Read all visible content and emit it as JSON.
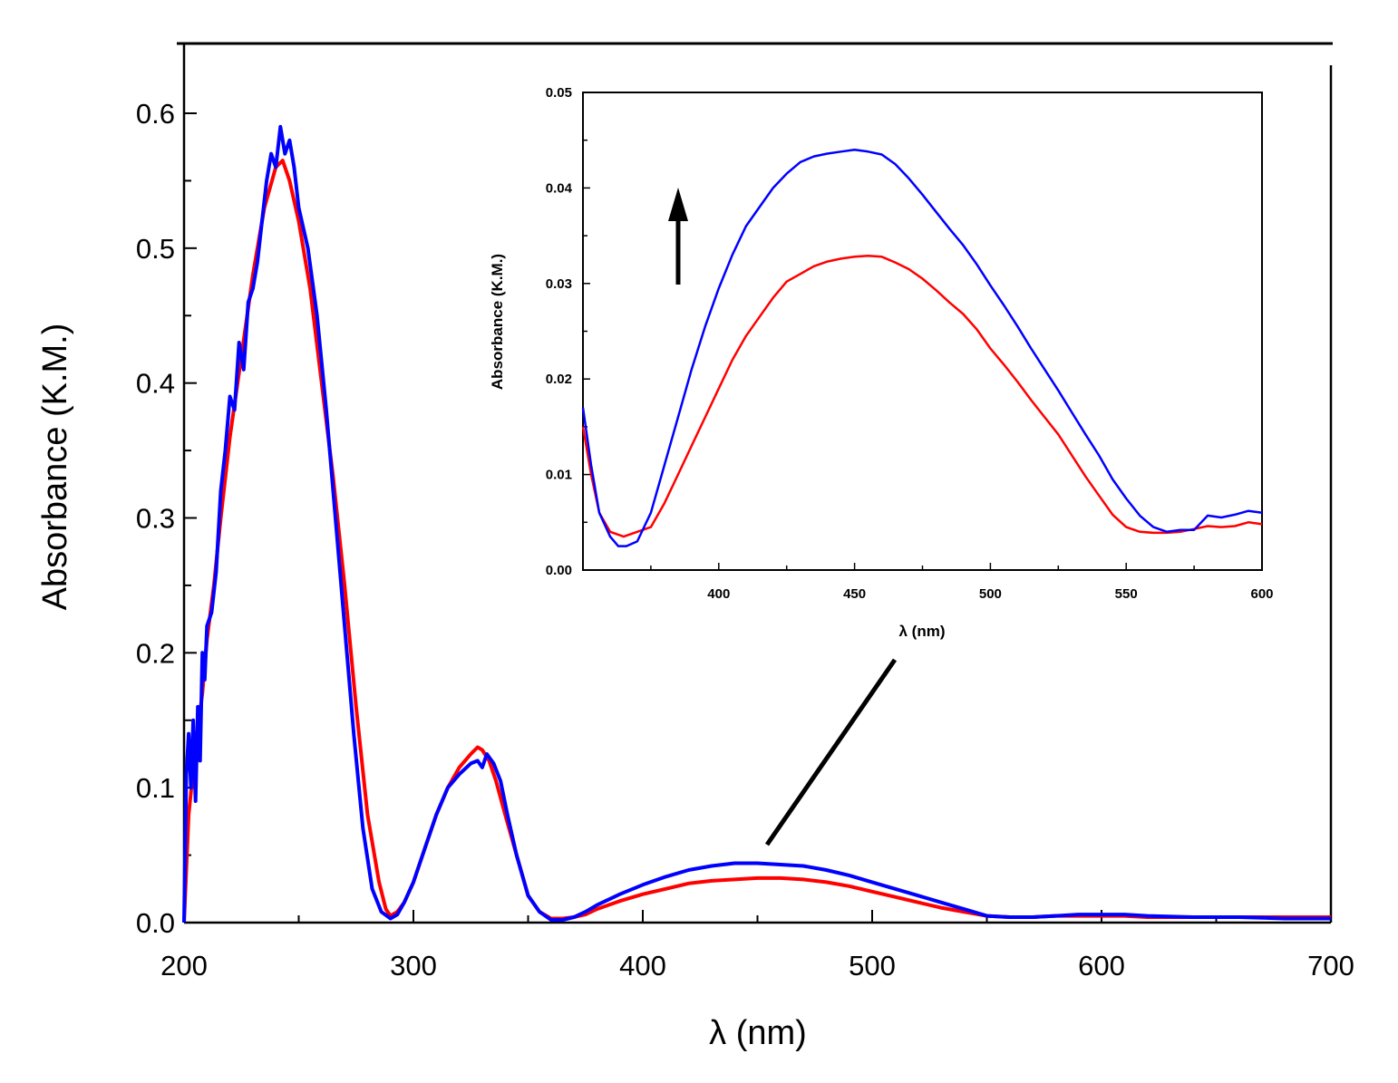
{
  "colors": {
    "series_red": "#ff0000",
    "series_blue": "#0000ff",
    "axis": "#000000"
  },
  "chart_data": [
    {
      "type": "line",
      "role": "main",
      "xlabel": "λ (nm)",
      "ylabel": "Absorbance (K.M.)",
      "xlim": [
        200,
        700
      ],
      "ylim": [
        0.0,
        0.65
      ],
      "xticks": [
        200,
        300,
        400,
        500,
        600,
        700
      ],
      "xtick_labels": [
        "200",
        "300",
        "400",
        "500",
        "600",
        "700"
      ],
      "yticks": [
        0.0,
        0.1,
        0.2,
        0.3,
        0.4,
        0.5,
        0.6
      ],
      "ytick_labels": [
        "0.0",
        "0.1",
        "0.2",
        "0.3",
        "0.4",
        "0.5",
        "0.6"
      ],
      "series": [
        {
          "name": "red",
          "color": "#ff0000",
          "x": [
            200,
            202,
            205,
            208,
            210,
            213,
            216,
            220,
            225,
            230,
            235,
            240,
            243,
            246,
            250,
            255,
            260,
            265,
            270,
            275,
            280,
            285,
            288,
            290,
            293,
            296,
            300,
            305,
            310,
            315,
            320,
            325,
            328,
            330,
            333,
            336,
            340,
            345,
            350,
            355,
            360,
            365,
            370,
            375,
            380,
            390,
            400,
            410,
            420,
            430,
            440,
            450,
            460,
            470,
            480,
            490,
            500,
            510,
            520,
            530,
            540,
            550,
            560,
            570,
            580,
            590,
            600,
            610,
            620,
            640,
            660,
            680,
            700
          ],
          "y": [
            0.0,
            0.08,
            0.13,
            0.17,
            0.21,
            0.25,
            0.3,
            0.36,
            0.42,
            0.48,
            0.53,
            0.56,
            0.565,
            0.55,
            0.52,
            0.47,
            0.4,
            0.33,
            0.25,
            0.16,
            0.08,
            0.03,
            0.01,
            0.005,
            0.008,
            0.015,
            0.03,
            0.055,
            0.08,
            0.1,
            0.115,
            0.125,
            0.13,
            0.128,
            0.12,
            0.105,
            0.08,
            0.05,
            0.02,
            0.008,
            0.003,
            0.003,
            0.004,
            0.006,
            0.01,
            0.016,
            0.021,
            0.025,
            0.029,
            0.031,
            0.032,
            0.033,
            0.033,
            0.032,
            0.03,
            0.027,
            0.023,
            0.019,
            0.015,
            0.011,
            0.008,
            0.005,
            0.004,
            0.004,
            0.005,
            0.005,
            0.005,
            0.005,
            0.004,
            0.004,
            0.004,
            0.004,
            0.004
          ]
        },
        {
          "name": "blue",
          "color": "#0000ff",
          "x": [
            200,
            201,
            202,
            203,
            204,
            205,
            206,
            207,
            208,
            209,
            210,
            212,
            214,
            216,
            218,
            220,
            222,
            224,
            226,
            228,
            230,
            232,
            234,
            236,
            238,
            240,
            242,
            244,
            246,
            248,
            250,
            254,
            258,
            262,
            266,
            270,
            274,
            278,
            282,
            286,
            290,
            293,
            296,
            300,
            305,
            310,
            315,
            320,
            325,
            328,
            330,
            332,
            335,
            338,
            341,
            345,
            350,
            355,
            360,
            365,
            370,
            375,
            380,
            390,
            400,
            410,
            420,
            430,
            440,
            450,
            460,
            470,
            480,
            490,
            500,
            510,
            520,
            530,
            540,
            550,
            560,
            570,
            580,
            590,
            600,
            610,
            620,
            640,
            660,
            680,
            700
          ],
          "y": [
            0.0,
            0.11,
            0.14,
            0.1,
            0.15,
            0.09,
            0.16,
            0.12,
            0.2,
            0.18,
            0.22,
            0.23,
            0.26,
            0.32,
            0.35,
            0.39,
            0.38,
            0.43,
            0.41,
            0.46,
            0.47,
            0.49,
            0.52,
            0.55,
            0.57,
            0.56,
            0.59,
            0.57,
            0.58,
            0.56,
            0.53,
            0.5,
            0.45,
            0.38,
            0.3,
            0.22,
            0.14,
            0.07,
            0.025,
            0.008,
            0.003,
            0.006,
            0.015,
            0.03,
            0.055,
            0.08,
            0.1,
            0.11,
            0.118,
            0.12,
            0.115,
            0.125,
            0.118,
            0.105,
            0.08,
            0.05,
            0.02,
            0.008,
            0.002,
            0.002,
            0.004,
            0.008,
            0.013,
            0.021,
            0.028,
            0.034,
            0.039,
            0.042,
            0.044,
            0.044,
            0.043,
            0.042,
            0.039,
            0.035,
            0.03,
            0.025,
            0.02,
            0.015,
            0.01,
            0.005,
            0.004,
            0.004,
            0.005,
            0.006,
            0.006,
            0.006,
            0.005,
            0.004,
            0.004,
            0.003,
            0.003
          ]
        }
      ],
      "annotations": [
        "pointer line from 450 nm band to inset"
      ]
    },
    {
      "type": "line",
      "role": "inset",
      "xlabel": "λ (nm)",
      "ylabel": "Absorbance (K.M.)",
      "xlim": [
        350,
        600
      ],
      "ylim": [
        0.0,
        0.05
      ],
      "xticks": [
        400,
        450,
        500,
        550,
        600
      ],
      "xtick_labels": [
        "400",
        "450",
        "500",
        "550",
        "600"
      ],
      "yticks": [
        0.0,
        0.01,
        0.02,
        0.03,
        0.04,
        0.05
      ],
      "ytick_labels": [
        "0.00",
        "0.01",
        "0.02",
        "0.03",
        "0.04",
        "0.05"
      ],
      "series": [
        {
          "name": "red",
          "color": "#ff0000",
          "x": [
            350,
            353,
            356,
            360,
            365,
            370,
            375,
            380,
            385,
            390,
            395,
            400,
            405,
            410,
            415,
            420,
            425,
            430,
            435,
            440,
            445,
            450,
            455,
            460,
            465,
            470,
            475,
            480,
            485,
            490,
            495,
            500,
            505,
            510,
            515,
            520,
            525,
            530,
            535,
            540,
            545,
            550,
            555,
            560,
            565,
            570,
            575,
            580,
            585,
            590,
            595,
            600
          ],
          "y": [
            0.015,
            0.01,
            0.006,
            0.004,
            0.0035,
            0.004,
            0.0045,
            0.007,
            0.01,
            0.013,
            0.016,
            0.019,
            0.022,
            0.0245,
            0.0265,
            0.0285,
            0.0302,
            0.031,
            0.0318,
            0.0323,
            0.0326,
            0.0328,
            0.0329,
            0.0328,
            0.0322,
            0.0315,
            0.0305,
            0.0293,
            0.028,
            0.0268,
            0.0252,
            0.0232,
            0.0215,
            0.0197,
            0.0178,
            0.016,
            0.0142,
            0.012,
            0.0098,
            0.0078,
            0.0058,
            0.0045,
            0.004,
            0.0039,
            0.0039,
            0.004,
            0.0043,
            0.0046,
            0.0045,
            0.0046,
            0.005,
            0.0048
          ]
        },
        {
          "name": "blue",
          "color": "#0000ff",
          "x": [
            350,
            353,
            356,
            360,
            363,
            366,
            370,
            375,
            380,
            385,
            390,
            395,
            400,
            405,
            410,
            415,
            420,
            425,
            430,
            435,
            440,
            445,
            450,
            455,
            460,
            465,
            470,
            475,
            480,
            485,
            490,
            495,
            500,
            505,
            510,
            515,
            520,
            525,
            530,
            535,
            540,
            545,
            550,
            555,
            560,
            565,
            570,
            575,
            580,
            585,
            590,
            595,
            600
          ],
          "y": [
            0.017,
            0.011,
            0.006,
            0.0035,
            0.0025,
            0.0025,
            0.003,
            0.006,
            0.011,
            0.016,
            0.021,
            0.0255,
            0.0295,
            0.033,
            0.036,
            0.038,
            0.04,
            0.0415,
            0.0427,
            0.0433,
            0.0436,
            0.0438,
            0.044,
            0.0438,
            0.0435,
            0.0425,
            0.041,
            0.0393,
            0.0375,
            0.0357,
            0.034,
            0.032,
            0.0298,
            0.0277,
            0.0255,
            0.0232,
            0.021,
            0.0188,
            0.0165,
            0.0142,
            0.012,
            0.0095,
            0.0075,
            0.0057,
            0.0045,
            0.004,
            0.0042,
            0.0042,
            0.0057,
            0.0055,
            0.0058,
            0.0062,
            0.006
          ]
        }
      ],
      "annotations": [
        "upward arrow near 390 nm"
      ]
    }
  ]
}
